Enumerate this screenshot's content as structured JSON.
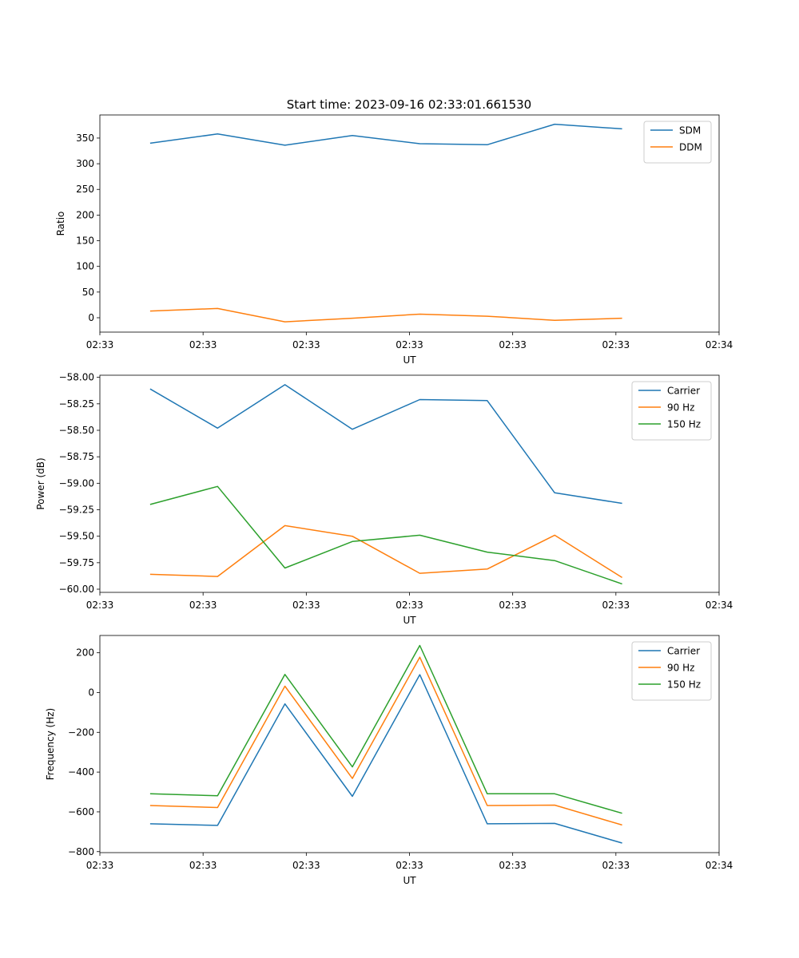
{
  "figure": {
    "title": "Start time: 2023-09-16 02:33:01.661530"
  },
  "chart_data": [
    {
      "type": "line",
      "name": "ratio-chart",
      "xlabel": "UT",
      "ylabel": "Ratio",
      "xlim": [
        0,
        9
      ],
      "ylim": [
        -28,
        395
      ],
      "x_ticks": [
        0,
        1.5,
        3,
        4.5,
        6,
        7.5,
        9
      ],
      "x_tick_labels": [
        "02:33",
        "02:33",
        "02:33",
        "02:33",
        "02:33",
        "02:33",
        "02:34"
      ],
      "y_ticks": [
        0,
        50,
        100,
        150,
        200,
        250,
        300,
        350
      ],
      "y_tick_labels": [
        "0",
        "50",
        "100",
        "150",
        "200",
        "250",
        "300",
        "350"
      ],
      "x": [
        0.73,
        1.71,
        2.69,
        3.67,
        4.65,
        5.63,
        6.61,
        7.59
      ],
      "series": [
        {
          "name": "SDM",
          "color": "#1f77b4",
          "values": [
            340,
            358,
            336,
            355,
            339,
            337,
            377,
            368
          ]
        },
        {
          "name": "DDM",
          "color": "#ff7f0e",
          "values": [
            13,
            18,
            -8,
            -1,
            7,
            3,
            -5,
            -1
          ]
        }
      ],
      "legend": "upper right"
    },
    {
      "type": "line",
      "name": "power-chart",
      "xlabel": "UT",
      "ylabel": "Power (dB)",
      "xlim": [
        0,
        9
      ],
      "ylim": [
        -60.03,
        -57.98
      ],
      "x_ticks": [
        0,
        1.5,
        3,
        4.5,
        6,
        7.5,
        9
      ],
      "x_tick_labels": [
        "02:33",
        "02:33",
        "02:33",
        "02:33",
        "02:33",
        "02:33",
        "02:34"
      ],
      "y_ticks": [
        -58.0,
        -58.25,
        -58.5,
        -58.75,
        -59.0,
        -59.25,
        -59.5,
        -59.75,
        -60.0
      ],
      "y_tick_labels": [
        "−58.00",
        "−58.25",
        "−58.50",
        "−58.75",
        "−59.00",
        "−59.25",
        "−59.50",
        "−59.75",
        "−60.00"
      ],
      "x": [
        0.73,
        1.71,
        2.69,
        3.67,
        4.65,
        5.63,
        6.61,
        7.59
      ],
      "series": [
        {
          "name": "Carrier",
          "color": "#1f77b4",
          "values": [
            -58.11,
            -58.48,
            -58.07,
            -58.49,
            -58.21,
            -58.22,
            -59.09,
            -59.19
          ]
        },
        {
          "name": "90 Hz",
          "color": "#ff7f0e",
          "values": [
            -59.86,
            -59.88,
            -59.4,
            -59.5,
            -59.85,
            -59.81,
            -59.49,
            -59.89
          ]
        },
        {
          "name": "150 Hz",
          "color": "#2ca02c",
          "values": [
            -59.2,
            -59.03,
            -59.8,
            -59.55,
            -59.49,
            -59.65,
            -59.73,
            -59.95
          ]
        }
      ],
      "legend": "upper right"
    },
    {
      "type": "line",
      "name": "frequency-chart",
      "xlabel": "UT",
      "ylabel": "Frequency (Hz)",
      "xlim": [
        0,
        9
      ],
      "ylim": [
        -805,
        287
      ],
      "x_ticks": [
        0,
        1.5,
        3,
        4.5,
        6,
        7.5,
        9
      ],
      "x_tick_labels": [
        "02:33",
        "02:33",
        "02:33",
        "02:33",
        "02:33",
        "02:33",
        "02:34"
      ],
      "y_ticks": [
        -800,
        -600,
        -400,
        -200,
        0,
        200
      ],
      "y_tick_labels": [
        "−800",
        "−600",
        "−400",
        "−200",
        "0",
        "200"
      ],
      "x": [
        0.73,
        1.71,
        2.69,
        3.67,
        4.65,
        5.63,
        6.61,
        7.59
      ],
      "series": [
        {
          "name": "Carrier",
          "color": "#1f77b4",
          "values": [
            -660,
            -668,
            -57,
            -522,
            90,
            -660,
            -658,
            -757
          ]
        },
        {
          "name": "90 Hz",
          "color": "#ff7f0e",
          "values": [
            -568,
            -578,
            32,
            -432,
            178,
            -568,
            -566,
            -666
          ]
        },
        {
          "name": "150 Hz",
          "color": "#2ca02c",
          "values": [
            -509,
            -519,
            91,
            -374,
            237,
            -509,
            -509,
            -607
          ]
        }
      ],
      "legend": "upper right"
    }
  ]
}
